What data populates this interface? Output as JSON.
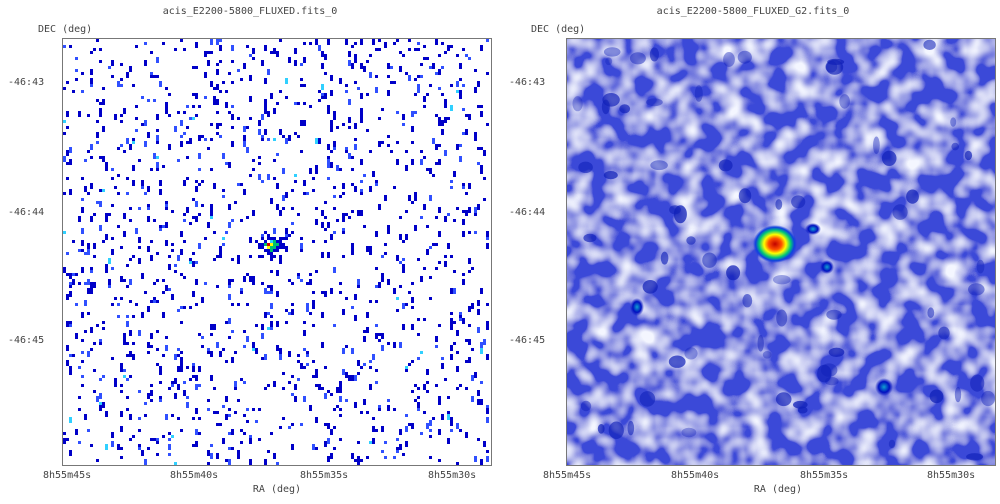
{
  "panels": [
    {
      "title": "acis_E2200-5800_FLUXED.fits_0",
      "ylabel": "DEC (deg)",
      "xlabel": "RA (deg)",
      "yticks": [
        "-46:43",
        "-46:44",
        "-46:45"
      ],
      "xticks": [
        "8h55m45s",
        "8h55m40s",
        "8h55m35s",
        "8h55m30s"
      ],
      "style": "sparse-counts"
    },
    {
      "title": "acis_E2200-5800_FLUXED_G2.fits_0",
      "ylabel": "DEC (deg)",
      "xlabel": "RA (deg)",
      "yticks": [
        "-46:43",
        "-46:44",
        "-46:45"
      ],
      "xticks": [
        "8h55m45s",
        "8h55m40s",
        "8h55m35s",
        "8h55m30s"
      ],
      "style": "smoothed"
    }
  ],
  "colors": {
    "pixel_dark": "#0000c8",
    "pixel_mid": "#3050ff",
    "pixel_cyan": "#30d0ff",
    "source_core": "#d00000",
    "source_ring": "#ffff00",
    "source_halo": "#00c070",
    "smooth_base": "#3a48d8",
    "smooth_light": "#e8ecff"
  }
}
